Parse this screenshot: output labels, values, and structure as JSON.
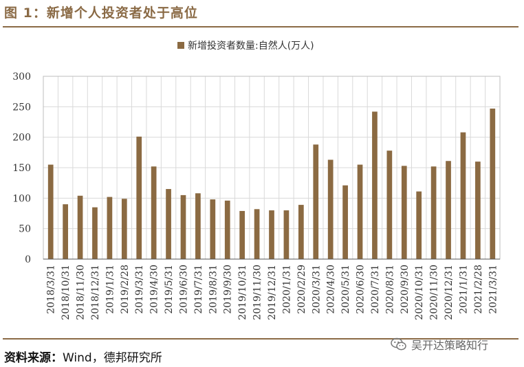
{
  "header": {
    "title": "图 1：新增个人投资者处于高位"
  },
  "footer": {
    "source_label": "资料来源：",
    "source_text": "Wind，德邦研究所",
    "watermark_text": "吴开达策略知行",
    "watermark_icon": "wechat-icon"
  },
  "colors": {
    "bar": "#8b6a42",
    "accent": "#8a6a45",
    "grid": "#d9d9d9"
  },
  "chart_data": {
    "type": "bar",
    "title": "",
    "xlabel": "",
    "ylabel": "",
    "ylim": [
      0,
      300
    ],
    "yticks": [
      0,
      50,
      100,
      150,
      200,
      250,
      300
    ],
    "grid": true,
    "legend_position": "top-center",
    "categories": [
      "2018/3/31",
      "2018/10/31",
      "2018/11/30",
      "2018/12/31",
      "2019/1/31",
      "2019/2/28",
      "2019/3/31",
      "2019/4/30",
      "2019/5/31",
      "2019/6/30",
      "2019/7/31",
      "2019/8/31",
      "2019/9/30",
      "2019/10/31",
      "2019/11/30",
      "2019/12/31",
      "2020/1/31",
      "2020/2/29",
      "2020/3/31",
      "2020/4/30",
      "2020/5/31",
      "2020/6/30",
      "2020/7/31",
      "2020/8/31",
      "2020/9/30",
      "2020/10/31",
      "2020/11/30",
      "2020/12/31",
      "2021/1/31",
      "2021/2/28",
      "2021/3/31"
    ],
    "series": [
      {
        "name": "新增投资者数量:自然人(万人)",
        "values": [
          155,
          90,
          104,
          85,
          102,
          99,
          201,
          152,
          115,
          105,
          108,
          98,
          96,
          79,
          82,
          80,
          80,
          89,
          188,
          163,
          121,
          155,
          242,
          178,
          153,
          111,
          152,
          161,
          208,
          160,
          247
        ]
      }
    ]
  }
}
